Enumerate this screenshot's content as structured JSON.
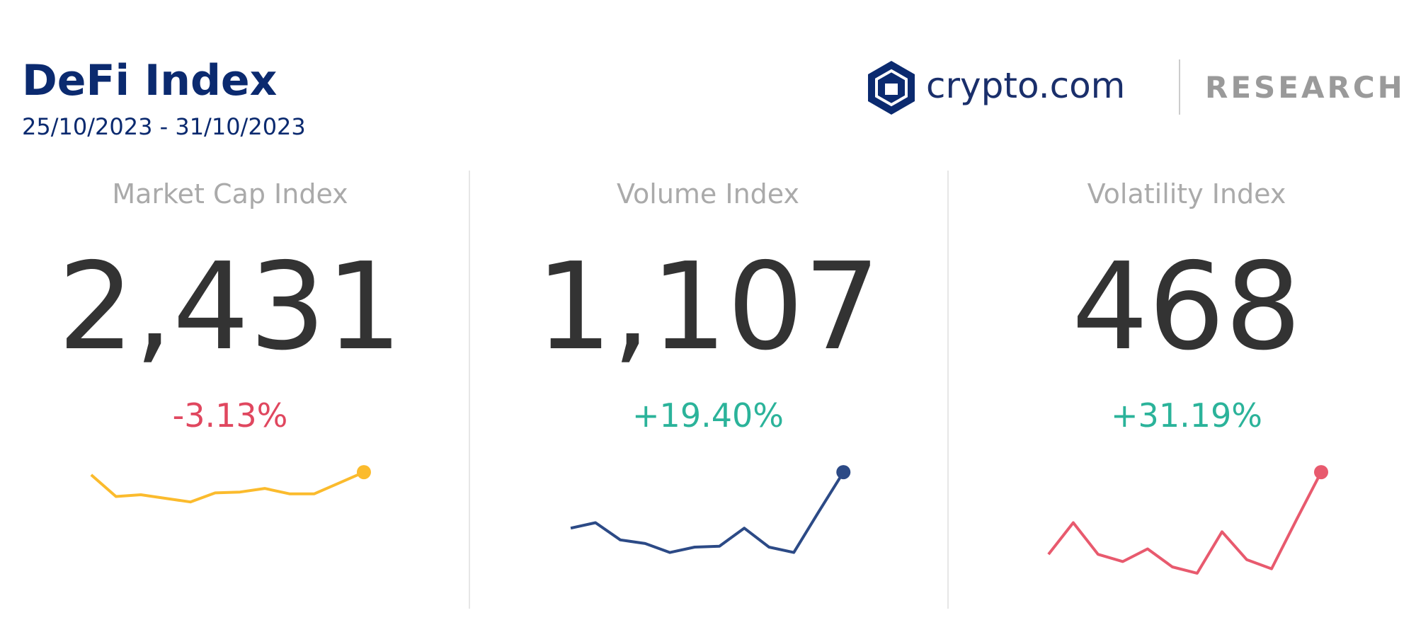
{
  "header": {
    "title": "DeFi Index",
    "date_range": "25/10/2023 - 31/10/2023",
    "brand": "crypto.com",
    "brand_suffix": "RESEARCH"
  },
  "panels": [
    {
      "title": "Market Cap Index",
      "value": "2,431",
      "change": "-3.13%",
      "change_color": "#e0475f",
      "chart_data": {
        "type": "line",
        "color": "#fbbb2d",
        "ylim": [
          0,
          140
        ],
        "values": [
          114,
          90,
          92,
          88,
          84,
          94,
          95,
          99,
          93,
          93,
          105,
          117
        ]
      }
    },
    {
      "title": "Volume Index",
      "value": "1,107",
      "change": "+19.40%",
      "change_color": "#2bb39a",
      "chart_data": {
        "type": "line",
        "color": "#2c4a86",
        "ylim": [
          0,
          140
        ],
        "values": [
          55,
          61,
          42,
          38,
          28,
          34,
          35,
          55,
          34,
          28,
          73,
          117
        ]
      }
    },
    {
      "title": "Volatility Index",
      "value": "468",
      "change": "+31.19%",
      "change_color": "#2bb39a",
      "chart_data": {
        "type": "line",
        "color": "#e85a6e",
        "ylim": [
          0,
          140
        ],
        "values": [
          26,
          61,
          26,
          18,
          32,
          12,
          5,
          51,
          20,
          10,
          64,
          117
        ]
      }
    }
  ]
}
